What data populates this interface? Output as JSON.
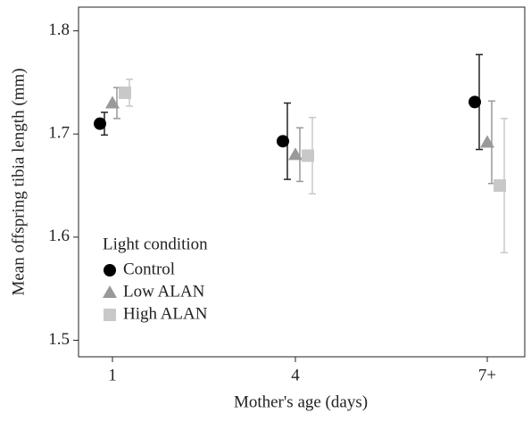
{
  "chart_data": {
    "type": "dot-errorbar",
    "x_label": "Mother's age (days)",
    "y_label": "Mean offspring tibia length (mm)",
    "legend_title": "Light condition",
    "categories": [
      "1",
      "4",
      "7+"
    ],
    "series": [
      {
        "name": "Control",
        "color": "#000000",
        "marker": "circle",
        "values": [
          1.71,
          1.693,
          1.731
        ],
        "errors": [
          0.011,
          0.037,
          0.046
        ]
      },
      {
        "name": "Low ALAN",
        "color": "#999999",
        "marker": "triangle",
        "values": [
          1.73,
          1.68,
          1.692
        ],
        "errors": [
          0.015,
          0.026,
          0.04
        ]
      },
      {
        "name": "High ALAN",
        "color": "#c8c8c8",
        "marker": "square",
        "values": [
          1.74,
          1.679,
          1.65
        ],
        "errors": [
          0.013,
          0.037,
          0.065
        ]
      }
    ],
    "ylim": [
      1.484,
      1.823
    ],
    "yticks": [
      1.5,
      1.6,
      1.7,
      1.8
    ],
    "legend": "lower-left"
  }
}
